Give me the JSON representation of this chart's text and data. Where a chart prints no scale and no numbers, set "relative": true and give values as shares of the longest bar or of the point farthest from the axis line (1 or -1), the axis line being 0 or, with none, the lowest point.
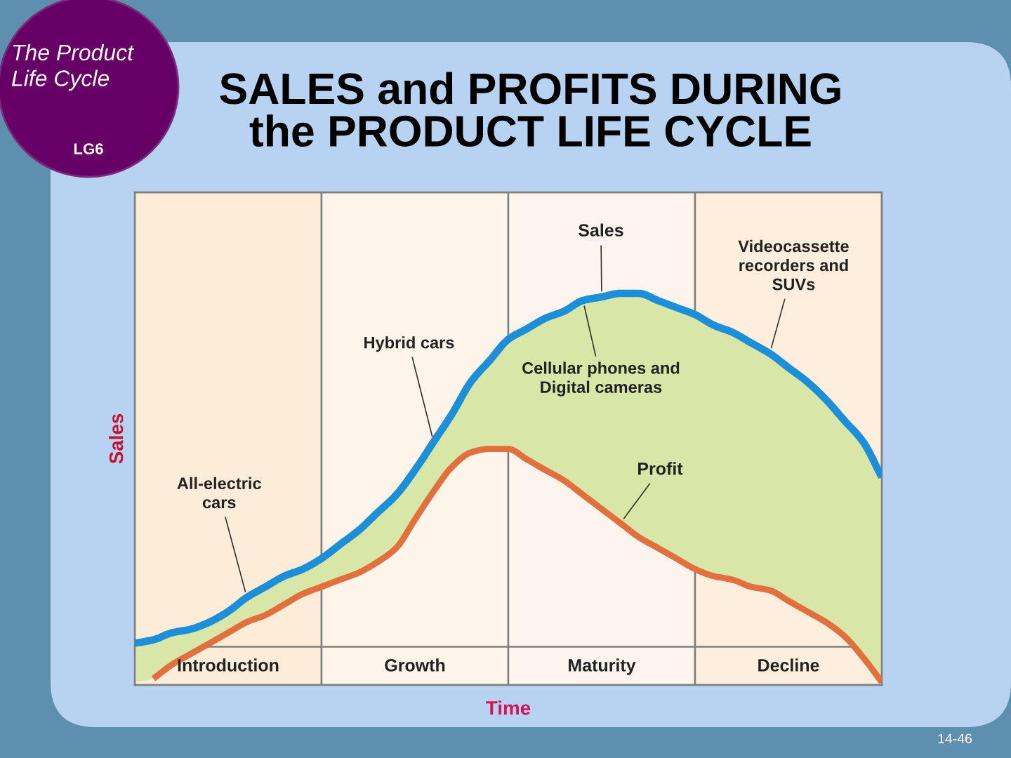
{
  "chart_data": {
    "type": "line",
    "title": "SALES and PROFITS DURING\nthe PRODUCT LIFE CYCLE",
    "xlabel": "Time",
    "ylabel": "Sales",
    "relative": true,
    "tick_labels": false,
    "legend": false,
    "grid": false,
    "categories": [
      null,
      null,
      null,
      null,
      null,
      null,
      null,
      null,
      null,
      null,
      null,
      null,
      null,
      null,
      null,
      null,
      null,
      null,
      null,
      null,
      null,
      null,
      null,
      null,
      null,
      null,
      null,
      null,
      null,
      null,
      null,
      null,
      null,
      null,
      null,
      null,
      null,
      null,
      null,
      null,
      null
    ],
    "series": [
      {
        "name": "Sales",
        "color": "#1d8fd8",
        "values": [
          0.01,
          0.02,
          0.04,
          0.05,
          0.07,
          0.1,
          0.14,
          0.17,
          0.2,
          0.22,
          0.25,
          0.29,
          0.33,
          0.38,
          0.43,
          0.5,
          0.58,
          0.66,
          0.75,
          0.81,
          0.87,
          0.9,
          0.93,
          0.95,
          0.98,
          0.99,
          1.0,
          1.0,
          0.98,
          0.96,
          0.94,
          0.91,
          0.89,
          0.86,
          0.83,
          0.79,
          0.75,
          0.7,
          0.64,
          0.58,
          0.48
        ],
        "lower": [
          -0.1,
          -0.09,
          -0.05,
          -0.02,
          0.01,
          0.04,
          0.07,
          0.09,
          0.12,
          0.15,
          0.17,
          0.19,
          0.21,
          0.24,
          0.28,
          0.36,
          0.44,
          0.51,
          0.55,
          0.56,
          0.56,
          0.53,
          0.5,
          0.47,
          0.43,
          0.39,
          0.35,
          0.31,
          0.28,
          0.25,
          0.22,
          0.2,
          0.19,
          0.17,
          0.16,
          0.13,
          0.1,
          0.07,
          0.03,
          -0.03,
          -0.1
        ],
        "upper": [
          0.01,
          0.02,
          0.04,
          0.05,
          0.07,
          0.1,
          0.14,
          0.17,
          0.2,
          0.22,
          0.25,
          0.29,
          0.33,
          0.38,
          0.43,
          0.5,
          0.58,
          0.66,
          0.75,
          0.81,
          0.87,
          0.9,
          0.93,
          0.95,
          0.98,
          0.99,
          1.0,
          1.0,
          0.98,
          0.96,
          0.94,
          0.91,
          0.89,
          0.86,
          0.83,
          0.79,
          0.75,
          0.7,
          0.64,
          0.58,
          0.48
        ]
      },
      {
        "name": "Profit",
        "color": "#e2703f",
        "values": [
          null,
          -0.09,
          -0.05,
          -0.02,
          0.01,
          0.04,
          0.07,
          0.09,
          0.12,
          0.15,
          0.17,
          0.19,
          0.21,
          0.24,
          0.28,
          0.36,
          0.44,
          0.51,
          0.55,
          0.56,
          0.56,
          0.53,
          0.5,
          0.47,
          0.43,
          0.39,
          0.35,
          0.31,
          0.28,
          0.25,
          0.22,
          0.2,
          0.19,
          0.17,
          0.16,
          0.13,
          0.1,
          0.07,
          0.03,
          -0.03,
          -0.1
        ]
      }
    ],
    "annotations": [
      "Hybrid cars",
      "All-electric\ncars",
      "Cellular phones and\nDigital cameras",
      "Videocassette\nrecorders and\nSUVs",
      "Introduction",
      "Growth",
      "Maturity",
      "Decline",
      "The Product\nLife Cycle",
      "LG6",
      "14-46"
    ]
  }
}
